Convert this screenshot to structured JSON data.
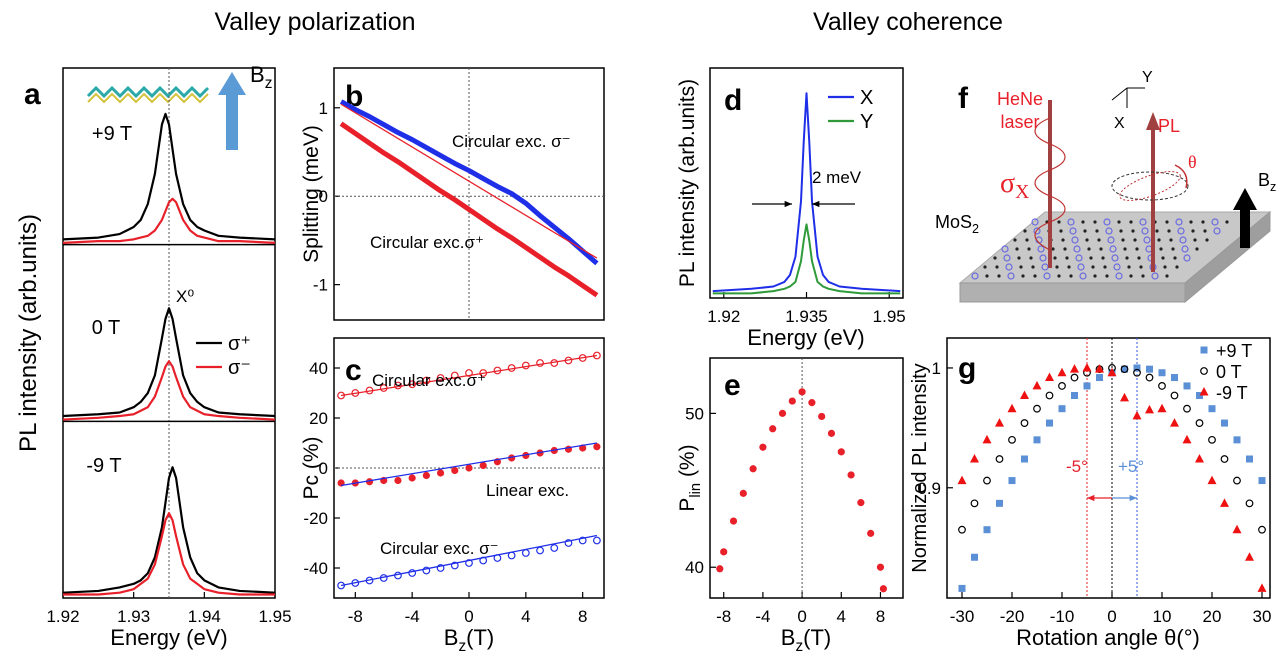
{
  "headings": [
    "Valley polarization",
    "Valley coherence"
  ],
  "chart_data": [
    {
      "panel": "a",
      "type": "line",
      "xlabel": "Energy (eV)",
      "ylabel": "PL intensity (arb.units)",
      "xlim": [
        1.92,
        1.95
      ],
      "xticks": [
        1.92,
        1.93,
        1.94,
        1.95
      ],
      "ylim": [
        0,
        1
      ],
      "reference_x": 1.935,
      "annotations": [
        "X⁰"
      ],
      "field_label": {
        "base": "B",
        "sub": "z"
      },
      "legend": [
        {
          "name": "σ⁺",
          "color": "#000000"
        },
        {
          "name": "σ⁻",
          "color": "#e8202a"
        }
      ],
      "x": [
        1.92,
        1.925,
        1.928,
        1.93,
        1.931,
        1.932,
        1.933,
        1.934,
        1.9345,
        1.935,
        1.9355,
        1.936,
        1.937,
        1.938,
        1.939,
        1.94,
        1.942,
        1.945,
        1.95
      ],
      "fields": [
        {
          "label": "+9 T",
          "values": [
            [
              0.03,
              0.04,
              0.06,
              0.1,
              0.14,
              0.23,
              0.4,
              0.68,
              0.74,
              0.68,
              0.54,
              0.4,
              0.23,
              0.14,
              0.1,
              0.08,
              0.05,
              0.04,
              0.03
            ],
            [
              0.01,
              0.02,
              0.02,
              0.03,
              0.04,
              0.05,
              0.08,
              0.14,
              0.19,
              0.24,
              0.26,
              0.24,
              0.14,
              0.08,
              0.05,
              0.04,
              0.02,
              0.02,
              0.01
            ]
          ]
        },
        {
          "label": "0 T",
          "values": [
            [
              0.03,
              0.04,
              0.05,
              0.08,
              0.11,
              0.16,
              0.26,
              0.47,
              0.58,
              0.64,
              0.58,
              0.47,
              0.26,
              0.16,
              0.11,
              0.08,
              0.05,
              0.04,
              0.03
            ],
            [
              0.01,
              0.02,
              0.03,
              0.04,
              0.06,
              0.08,
              0.14,
              0.25,
              0.31,
              0.34,
              0.31,
              0.25,
              0.14,
              0.08,
              0.06,
              0.04,
              0.03,
              0.02,
              0.01
            ]
          ]
        },
        {
          "label": "-9 T",
          "values": [
            [
              0.03,
              0.04,
              0.06,
              0.08,
              0.1,
              0.14,
              0.23,
              0.4,
              0.54,
              0.68,
              0.74,
              0.68,
              0.4,
              0.23,
              0.14,
              0.1,
              0.06,
              0.04,
              0.03
            ],
            [
              0.02,
              0.02,
              0.03,
              0.05,
              0.08,
              0.11,
              0.19,
              0.35,
              0.44,
              0.48,
              0.44,
              0.35,
              0.19,
              0.11,
              0.08,
              0.05,
              0.03,
              0.02,
              0.02
            ]
          ]
        }
      ]
    },
    {
      "panel": "b",
      "type": "line",
      "ylabel": "Splitting (meV)",
      "xlim": [
        -9.5,
        9.5
      ],
      "ylim": [
        -1.4,
        1.45
      ],
      "yticks": [
        -1,
        0,
        1
      ],
      "reference_x": 0,
      "reference_y": 0,
      "annotations": [
        "Circular exc. σ⁻",
        "Circular exc.σ⁺"
      ],
      "x": [
        -9,
        -8,
        -7,
        -6,
        -5,
        -4,
        -3,
        -2,
        -1,
        0,
        1,
        2,
        3,
        4,
        5,
        6,
        7,
        8,
        9
      ],
      "series": [
        {
          "color": "#1f2fe8",
          "style": "thick",
          "values": [
            1.07,
            0.98,
            0.9,
            0.81,
            0.72,
            0.64,
            0.55,
            0.46,
            0.37,
            0.29,
            0.2,
            0.11,
            0.03,
            -0.08,
            -0.22,
            -0.35,
            -0.48,
            -0.62,
            -0.76
          ]
        },
        {
          "color": "#e8202a",
          "style": "thick",
          "values": [
            0.82,
            0.71,
            0.6,
            0.49,
            0.39,
            0.28,
            0.17,
            0.06,
            -0.04,
            -0.15,
            -0.26,
            -0.37,
            -0.47,
            -0.58,
            -0.69,
            -0.8,
            -0.9,
            -1.01,
            -1.12
          ]
        }
      ],
      "fits": [
        {
          "color": "#e8202a",
          "x": [
            -9,
            9
          ],
          "values": [
            1.04,
            -0.7
          ]
        },
        {
          "color": "#e8202a",
          "x": [
            -9,
            9
          ],
          "values": [
            0.82,
            -1.12
          ]
        }
      ]
    },
    {
      "panel": "c",
      "type": "scatter",
      "ylabel": "Pc (%)",
      "xlabel": {
        "base": "B",
        "sub": "z",
        "rest": "(T)"
      },
      "xlim": [
        -9.5,
        9.5
      ],
      "xticks": [
        -8,
        -4,
        0,
        4,
        8
      ],
      "ylim": [
        -52,
        52
      ],
      "yticks": [
        -40,
        -20,
        0,
        20,
        40
      ],
      "reference_y": 0,
      "annotations": [
        "Circular exc.σ⁺",
        "Linear exc.",
        "Circular exc. σ⁻"
      ],
      "x": [
        -9,
        -8,
        -7,
        -6,
        -5,
        -4,
        -3,
        -2,
        -1,
        0,
        1,
        2,
        3,
        4,
        5,
        6,
        7,
        8,
        9
      ],
      "series": [
        {
          "color": "#e8202a",
          "style": "open",
          "values": [
            29,
            30,
            31,
            32,
            33,
            33.5,
            35,
            36,
            37,
            38,
            38,
            39,
            40,
            41,
            42,
            42,
            43,
            44,
            45
          ]
        },
        {
          "color": "#e8202a",
          "style": "filled",
          "values": [
            -6,
            -6,
            -5.5,
            -5,
            -5,
            -4,
            -3,
            -2,
            -1,
            0,
            1,
            2.5,
            4,
            5,
            6,
            7,
            7.5,
            8,
            8.5
          ]
        },
        {
          "color": "#1f2fe8",
          "style": "open",
          "values": [
            -47,
            -46,
            -45,
            -44,
            -43,
            -42,
            -41,
            -40,
            -39,
            -38,
            -37,
            -36,
            -35,
            -34,
            -33,
            -32,
            -30,
            -29,
            -29
          ]
        }
      ],
      "fits": [
        {
          "color": "#e8202a",
          "x": [
            -9,
            9
          ],
          "values": [
            29,
            45
          ]
        },
        {
          "color": "#1f2fe8",
          "x": [
            -9,
            9
          ],
          "values": [
            -7,
            10
          ]
        },
        {
          "color": "#1f2fe8",
          "x": [
            -9,
            9
          ],
          "values": [
            -47,
            -27
          ]
        }
      ]
    },
    {
      "panel": "d",
      "type": "line",
      "xlabel": "Energy (eV)",
      "ylabel": "PL intensity (arb.units)",
      "xlim": [
        1.9175,
        1.9525
      ],
      "xticks": [
        1.92,
        1.935,
        1.95
      ],
      "ylim": [
        0,
        1
      ],
      "annotations": [
        "2 meV"
      ],
      "x": [
        1.918,
        1.925,
        1.929,
        1.931,
        1.932,
        1.933,
        1.934,
        1.9345,
        1.935,
        1.9355,
        1.936,
        1.937,
        1.938,
        1.939,
        1.941,
        1.945,
        1.952
      ],
      "series": [
        {
          "name": "X",
          "color": "#1f2fe8",
          "values": [
            0.03,
            0.04,
            0.05,
            0.07,
            0.1,
            0.18,
            0.42,
            0.68,
            0.89,
            0.68,
            0.42,
            0.18,
            0.1,
            0.07,
            0.05,
            0.04,
            0.03
          ]
        },
        {
          "name": "Y",
          "color": "#2e9a3a",
          "values": [
            0.02,
            0.02,
            0.03,
            0.04,
            0.05,
            0.07,
            0.16,
            0.25,
            0.32,
            0.25,
            0.16,
            0.07,
            0.05,
            0.04,
            0.03,
            0.02,
            0.02
          ]
        }
      ]
    },
    {
      "panel": "e",
      "type": "scatter",
      "xlabel": {
        "base": "B",
        "sub": "z",
        "rest": "(T)"
      },
      "ylabel": {
        "base": "P",
        "sub": "lin",
        "rest": " (%)"
      },
      "xlim": [
        -9.4,
        10.3
      ],
      "xticks": [
        -8,
        -4,
        0,
        4,
        8
      ],
      "ylim": [
        38,
        53.6
      ],
      "yticks": [
        40,
        50
      ],
      "reference_x": 0,
      "x": [
        -8.4,
        -8,
        -7,
        -6,
        -5,
        -4,
        -3,
        -2,
        -1,
        0,
        1,
        2,
        3,
        4,
        5,
        6,
        7,
        8,
        8.3
      ],
      "series": [
        {
          "color": "#e8202a",
          "style": "filled",
          "values": [
            39.9,
            41.0,
            43.0,
            44.8,
            46.4,
            47.8,
            49.0,
            50.0,
            50.8,
            51.4,
            50.7,
            49.8,
            48.7,
            47.5,
            46.0,
            44.2,
            42.2,
            40.0,
            38.6
          ]
        }
      ]
    },
    {
      "panel": "g",
      "type": "scatter",
      "xlabel": "Rotation angle θ(°)",
      "ylabel": "Normalized PL intensity",
      "xlim": [
        -33,
        31.6
      ],
      "xticks": [
        -30,
        -20,
        -10,
        0,
        10,
        20,
        30
      ],
      "ylim": [
        0.808,
        1.025
      ],
      "yticks": [
        0.9,
        1
      ],
      "reference_x": [
        -5,
        0,
        5
      ],
      "reference_colors": [
        "#e8202a",
        "#000000",
        "#3355dd"
      ],
      "annotations": [
        "-5°",
        "+5°"
      ],
      "annotation_colors": [
        "#e8202a",
        "#5b8fd6"
      ],
      "x": [
        -30,
        -27.5,
        -25,
        -22.5,
        -20,
        -17.5,
        -15,
        -12.5,
        -10,
        -7.5,
        -5,
        -2.5,
        0,
        2.5,
        5,
        7.5,
        10,
        12.5,
        15,
        17.5,
        20,
        22.5,
        25,
        27.5,
        30
      ],
      "series": [
        {
          "name": "+9 T",
          "color": "#5b8fd6",
          "style": "square",
          "values": [
            0.816,
            0.842,
            0.865,
            0.887,
            0.906,
            0.924,
            0.94,
            0.954,
            0.966,
            0.977,
            0.985,
            0.992,
            0.996,
            0.999,
            1.0,
            0.999,
            0.996,
            0.992,
            0.985,
            0.977,
            0.966,
            0.954,
            0.94,
            0.924,
            0.906
          ]
        },
        {
          "name": "0 T",
          "color": "#000000",
          "style": "open",
          "values": [
            0.865,
            0.887,
            0.906,
            0.924,
            0.94,
            0.954,
            0.966,
            0.977,
            0.985,
            0.992,
            0.996,
            0.999,
            1.0,
            0.999,
            0.996,
            0.992,
            0.985,
            0.977,
            0.966,
            0.954,
            0.94,
            0.924,
            0.906,
            0.887,
            0.865
          ]
        },
        {
          "name": "-9 T",
          "color": "#ee1111",
          "style": "triangle",
          "values": [
            0.906,
            0.924,
            0.94,
            0.954,
            0.966,
            0.977,
            0.985,
            0.992,
            0.996,
            0.999,
            1.0,
            0.999,
            0.996,
            0.975,
            0.96,
            0.965,
            0.966,
            0.954,
            0.94,
            0.924,
            0.906,
            0.887,
            0.865,
            0.842,
            0.816
          ]
        }
      ]
    }
  ],
  "schematic": {
    "panel": "f",
    "laser": [
      "HeNe",
      "laser"
    ],
    "polarization": {
      "base": "σ",
      "sub": "X"
    },
    "material": {
      "base": "MoS",
      "sub": "2"
    },
    "emission": "PL",
    "angle": "θ",
    "field": {
      "base": "B",
      "sub": "z"
    },
    "axes": [
      "X",
      "Y"
    ]
  }
}
